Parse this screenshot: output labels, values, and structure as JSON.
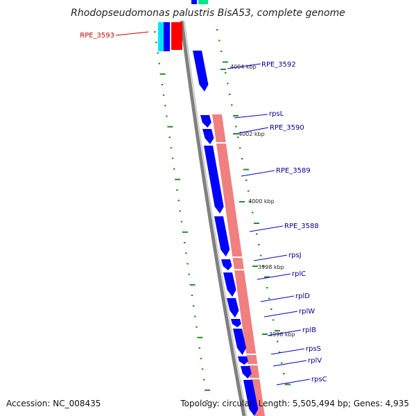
{
  "title": "Rhodopseudomonas palustris BisA53, complete genome",
  "footer": {
    "accession": "Accession: NC_008435",
    "summary": "Topology: circular; Length: 5,505,494 bp; Genes: 4,935"
  },
  "colors": {
    "backbone": "#808080",
    "forward_gene": "#0000ff",
    "rrna_highlight": "#f08080",
    "selected_gene_label": "#cc0000",
    "gene_label": "#00008b",
    "tick": "#228b22",
    "cyan_feature": "#00e5ff",
    "green_feature": "#00e68a"
  },
  "kbp_ticks": [
    {
      "label": "4004 kbp"
    },
    {
      "label": "4002 kbp"
    },
    {
      "label": "4000 kbp"
    },
    {
      "label": "3998 kbp"
    },
    {
      "label": "3996 kbp"
    }
  ],
  "genes": [
    {
      "label": "RPE_3593",
      "selected": true
    },
    {
      "label": "RPE_3592"
    },
    {
      "label": "rpsL"
    },
    {
      "label": "RPE_3590"
    },
    {
      "label": "RPE_3589"
    },
    {
      "label": "RPE_3588"
    },
    {
      "label": "rpsJ"
    },
    {
      "label": "rplC"
    },
    {
      "label": "rplD"
    },
    {
      "label": "rplW"
    },
    {
      "label": "rplB"
    },
    {
      "label": "rpsS"
    },
    {
      "label": "rplV"
    },
    {
      "label": "rpsC"
    }
  ]
}
